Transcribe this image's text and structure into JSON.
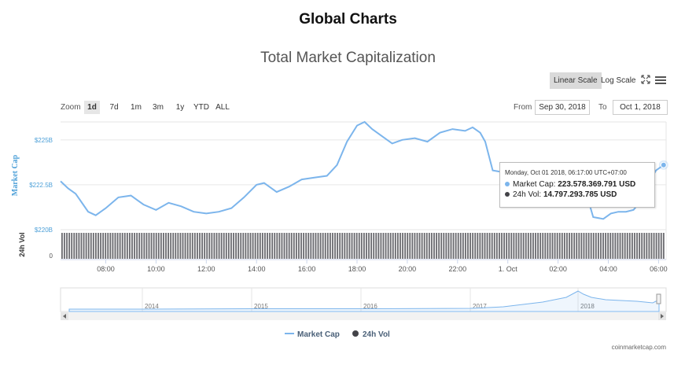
{
  "page": {
    "title": "Global Charts"
  },
  "toolbar": {
    "linear_label": "Linear Scale",
    "log_label": "Log Scale"
  },
  "zoom": {
    "label": "Zoom",
    "buttons": [
      "1d",
      "7d",
      "1m",
      "3m",
      "1y",
      "YTD",
      "ALL"
    ],
    "active": "1d"
  },
  "range": {
    "from_label": "From",
    "from": "Sep 30, 2018",
    "to_label": "To",
    "to": "Oct 1, 2018"
  },
  "tooltip": {
    "date": "Monday, Oct 01 2018, 06:17:00 UTC+07:00",
    "market_cap_label": "Market Cap:",
    "market_cap_value": "223.578.369.791 USD",
    "vol_label": "24h Vol:",
    "vol_value": "14.797.293.785 USD"
  },
  "credit": "coinmarketcap.com",
  "colors": {
    "market_cap": "#7cb5ec",
    "volume": "#434348",
    "axis_label": "#4da0d8"
  },
  "chart_data": {
    "type": "line",
    "title": "Total Market Capitalization",
    "ylabel": "Market Cap",
    "ylabel2": "24h Vol",
    "y_ticks": [
      "$225B",
      "$222.5B",
      "$220B"
    ],
    "y_tick_values": [
      225,
      222.5,
      220
    ],
    "ylim": [
      220,
      226
    ],
    "vol_ticks": [
      "0"
    ],
    "x_ticks": [
      "08:00",
      "10:00",
      "12:00",
      "14:00",
      "16:00",
      "18:00",
      "20:00",
      "22:00",
      "1. Oct",
      "02:00",
      "04:00",
      "06:00"
    ],
    "x_tick_hours": [
      8,
      10,
      12,
      14,
      16,
      18,
      20,
      22,
      24,
      26,
      28,
      30
    ],
    "xlim_hours": [
      6.2,
      30.3
    ],
    "series": [
      {
        "name": "Market Cap",
        "x_hours": [
          6.2,
          6.5,
          6.8,
          7.0,
          7.3,
          7.6,
          8.0,
          8.5,
          9.0,
          9.5,
          10.0,
          10.5,
          11.0,
          11.5,
          12.0,
          12.5,
          13.0,
          13.5,
          14.0,
          14.3,
          14.8,
          15.3,
          15.8,
          16.3,
          16.8,
          17.2,
          17.6,
          18.0,
          18.3,
          18.6,
          19.0,
          19.4,
          19.8,
          20.3,
          20.8,
          21.3,
          21.8,
          22.3,
          22.6,
          22.9,
          23.1,
          23.4,
          23.8,
          24.2,
          24.6,
          25.0,
          25.4,
          25.8,
          26.2,
          26.6,
          27.0,
          27.4,
          27.8,
          28.1,
          28.4,
          28.7,
          29.0,
          29.3,
          29.6,
          29.9,
          30.2
        ],
        "values": [
          222.7,
          222.3,
          222.0,
          221.6,
          221.0,
          220.8,
          221.2,
          221.8,
          221.9,
          221.4,
          221.1,
          221.5,
          221.3,
          221.0,
          220.9,
          221.0,
          221.2,
          221.8,
          222.5,
          222.6,
          222.1,
          222.4,
          222.8,
          222.9,
          223.0,
          223.6,
          224.9,
          225.8,
          226.0,
          225.6,
          225.2,
          224.8,
          225.0,
          225.1,
          224.9,
          225.4,
          225.6,
          225.5,
          225.7,
          225.4,
          224.9,
          223.3,
          223.2,
          223.0,
          223.3,
          223.4,
          223.1,
          222.9,
          223.2,
          223.3,
          222.6,
          220.7,
          220.6,
          220.9,
          221.0,
          221.0,
          221.1,
          221.6,
          222.6,
          223.3,
          223.6
        ]
      },
      {
        "name": "24h Vol",
        "values_note": "",
        "value_at_cursor": 14.797
      }
    ],
    "navigator": {
      "years": [
        "2014",
        "2015",
        "2016",
        "2017",
        "2018"
      ]
    },
    "legend": [
      "Market Cap",
      "24h Vol"
    ],
    "legend_position": "bottom-center",
    "grid": true
  }
}
